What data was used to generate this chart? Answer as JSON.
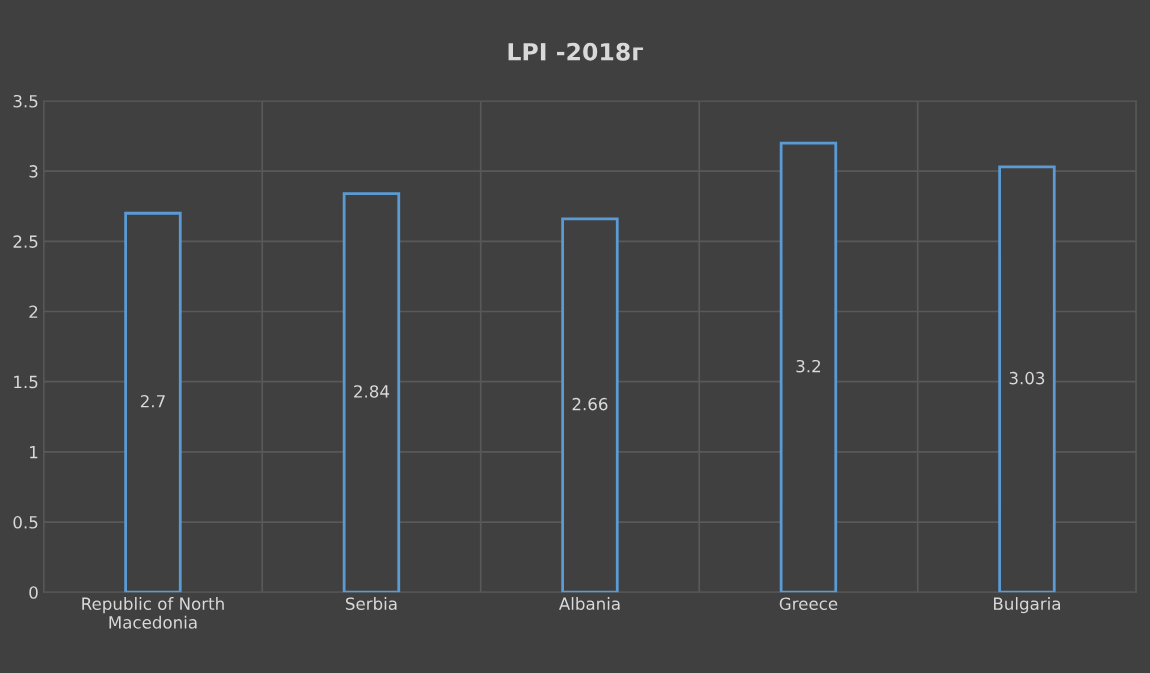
{
  "chart_data": {
    "type": "bar",
    "title": "LPI -2018г",
    "categories": [
      "Republic of North Macedonia",
      "Serbia",
      "Albania",
      "Greece",
      "Bulgaria"
    ],
    "values": [
      2.7,
      2.84,
      2.66,
      3.2,
      3.03
    ],
    "color": "#5b9bd5",
    "ylim": [
      0,
      3.5
    ],
    "yticks": [
      0,
      0.5,
      1,
      1.5,
      2,
      2.5,
      3,
      3.5
    ],
    "grid": true,
    "data_labels": true
  }
}
